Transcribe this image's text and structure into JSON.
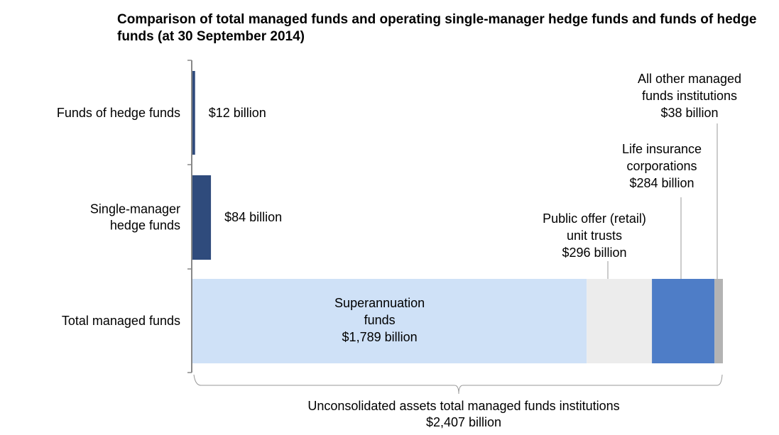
{
  "chart_data": {
    "type": "bar",
    "orientation": "horizontal",
    "stacked": true,
    "title": "Comparison of total managed funds and operating single-manager hedge funds and funds of hedge funds (at 30 September 2014)",
    "unit": "billion AUD",
    "categories": [
      "Funds of hedge funds",
      "Single-manager hedge funds",
      "Total managed funds"
    ],
    "category_labels": [
      [
        "Funds of hedge funds"
      ],
      [
        "Single-manager",
        "hedge funds"
      ],
      [
        "Total managed funds"
      ]
    ],
    "hedge_bars": [
      {
        "category": "Funds of hedge funds",
        "value": 12,
        "label": "$12 billion",
        "color": "#2f4b7c"
      },
      {
        "category": "Single-manager hedge funds",
        "value": 84,
        "label": "$84 billion",
        "color": "#2f4b7c"
      }
    ],
    "total_segments": [
      {
        "name": "Superannuation funds",
        "value": 1789,
        "label_lines": [
          "Superannuation",
          "funds",
          "$1,789 billion"
        ],
        "color": "#cfe1f7"
      },
      {
        "name": "Public offer (retail) unit trusts",
        "value": 296,
        "label_lines": [
          "Public offer (retail)",
          "unit trusts",
          "$296 billion"
        ],
        "color": "#ececec"
      },
      {
        "name": "Life insurance corporations",
        "value": 284,
        "label_lines": [
          "Life insurance",
          "corporations",
          "$284 billion"
        ],
        "color": "#4e7dc7"
      },
      {
        "name": "All other managed funds institutions",
        "value": 38,
        "label_lines": [
          "All other managed",
          "funds institutions",
          "$38 billion"
        ],
        "color": "#b3b3b3"
      }
    ],
    "total": 2407,
    "brace_label": [
      "Unconsolidated assets total managed funds institutions",
      "$2,407 billion"
    ],
    "xlim": [
      0,
      2407
    ],
    "grid": false
  }
}
